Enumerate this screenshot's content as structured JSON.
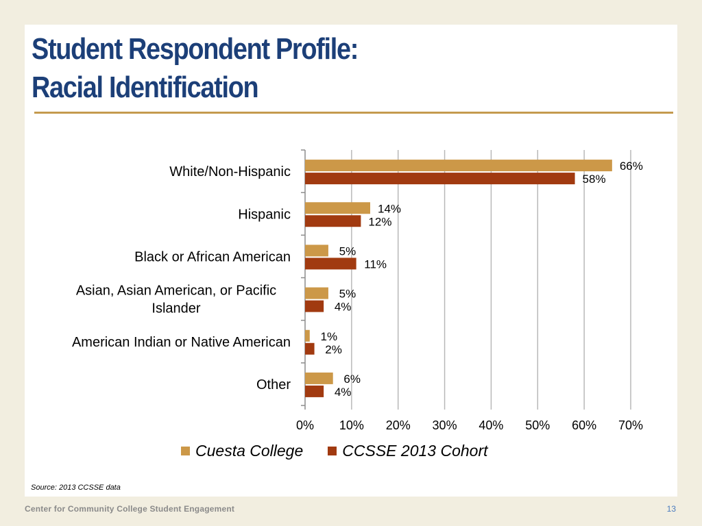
{
  "slide": {
    "title_line1": "Student Respondent Profile:",
    "title_line2": "Racial Identification",
    "source": "Source: 2013 CCSSE data",
    "footer_org": "Center for Community College Student Engagement",
    "page_number": "13"
  },
  "colors": {
    "cuesta": "#cc9848",
    "ccsse": "#a13a10",
    "title": "#1c3f78",
    "rule": "#c49a4e",
    "gridline": "#b8b8b8"
  },
  "chart_data": {
    "type": "bar",
    "orientation": "horizontal",
    "categories": [
      "White/Non-Hispanic",
      "Hispanic",
      "Black or African American",
      "Asian, Asian American, or Pacific Islander",
      "American Indian or Native American",
      "Other"
    ],
    "category_label_lines": [
      [
        "White/Non-Hispanic"
      ],
      [
        "Hispanic"
      ],
      [
        "Black or African American"
      ],
      [
        "Asian, Asian American, or Pacific",
        "Islander"
      ],
      [
        "American Indian or Native American"
      ],
      [
        "Other"
      ]
    ],
    "series": [
      {
        "name": "Cuesta College",
        "values": [
          66,
          14,
          5,
          5,
          1,
          6
        ],
        "labels": [
          "66%",
          "14%",
          "5%",
          "5%",
          "1%",
          "6%"
        ]
      },
      {
        "name": "CCSSE 2013 Cohort",
        "values": [
          58,
          12,
          11,
          4,
          2,
          4
        ],
        "labels": [
          "58%",
          "12%",
          "11%",
          "4%",
          "2%",
          "4%"
        ]
      }
    ],
    "x_ticks": [
      "0%",
      "10%",
      "20%",
      "30%",
      "40%",
      "50%",
      "60%",
      "70%"
    ],
    "xlim": [
      0,
      70
    ],
    "grid": true,
    "legend_position": "bottom"
  }
}
